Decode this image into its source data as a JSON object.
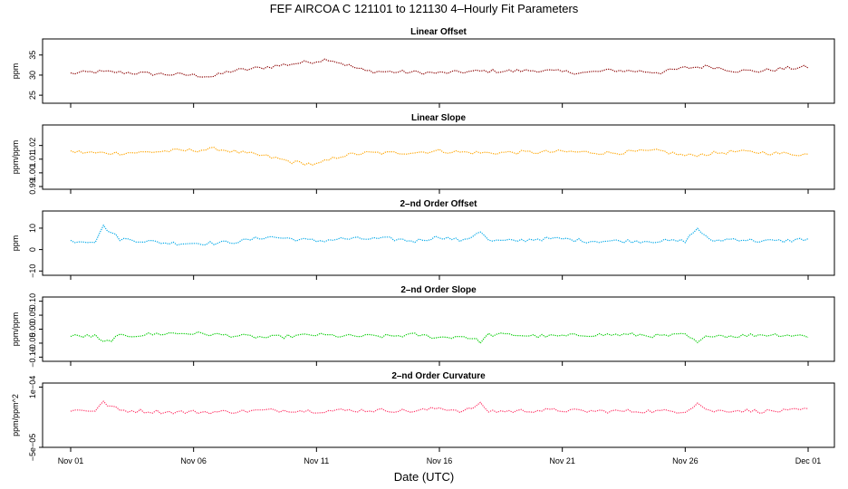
{
  "chart_data": {
    "type": "line",
    "title": "FEF   AIRCOA C   121101 to 121130   4–Hourly Fit Parameters",
    "xlabel": "Date (UTC)",
    "x_ticks": [
      "Nov 01",
      "Nov 06",
      "Nov 11",
      "Nov 16",
      "Nov 21",
      "Nov 26",
      "Dec 01"
    ],
    "x_range_days": [
      0,
      30
    ],
    "panels": [
      {
        "title": "Linear Offset",
        "ylabel": "ppm",
        "color": "#8b0000",
        "ylim": [
          23,
          39
        ],
        "yticks": [
          "25",
          "30",
          "35"
        ],
        "ytick_values": [
          25,
          30,
          35
        ],
        "series": {
          "x": [
            0,
            1,
            2,
            3,
            4,
            5,
            5.8,
            6.5,
            7,
            8,
            9,
            10,
            10.5,
            11,
            12,
            13,
            14,
            15,
            16,
            17,
            18,
            19,
            20,
            21,
            22,
            23,
            24,
            25,
            26,
            27,
            28,
            29,
            30
          ],
          "y": [
            30.4,
            30.8,
            30.7,
            30.4,
            30.2,
            30.0,
            29.6,
            31,
            31.3,
            32,
            32.8,
            33.5,
            34,
            33,
            31,
            30.8,
            30.7,
            30.5,
            30.8,
            31,
            31,
            31.2,
            30.8,
            30.6,
            31.2,
            31,
            30.7,
            31.8,
            32.2,
            31.1,
            31,
            31.6,
            32
          ]
        }
      },
      {
        "title": "Linear Slope",
        "ylabel": "ppm/ppm",
        "color": "#ffa500",
        "ylim": [
          0.988,
          1.035
        ],
        "yticks": [
          "0.99",
          "1.00",
          "1.01",
          "1.02"
        ],
        "ytick_values": [
          0.99,
          1.0,
          1.01,
          1.02
        ],
        "series": {
          "x": [
            0,
            1,
            2,
            3,
            4,
            5,
            6,
            7,
            8,
            9,
            10,
            11,
            12,
            13,
            14,
            15,
            16,
            17,
            18,
            19,
            20,
            21,
            22,
            23,
            24,
            25,
            26,
            27,
            28,
            29,
            30
          ],
          "y": [
            1.0155,
            1.0145,
            1.0145,
            1.015,
            1.016,
            1.0165,
            1.0175,
            1.0145,
            1.012,
            1.008,
            1.006,
            1.0125,
            1.0145,
            1.0145,
            1.015,
            1.016,
            1.015,
            1.0145,
            1.015,
            1.015,
            1.0155,
            1.015,
            1.0145,
            1.0155,
            1.016,
            1.0125,
            1.014,
            1.0155,
            1.015,
            1.014,
            1.0135
          ]
        }
      },
      {
        "title": "2–nd Order Offset",
        "ylabel": "ppm",
        "color": "#00a8e8",
        "ylim": [
          -12,
          18
        ],
        "yticks": [
          "−10",
          "0",
          "10"
        ],
        "ytick_values": [
          -10,
          0,
          10
        ],
        "series": {
          "x": [
            0,
            1,
            1.3,
            2,
            3,
            4,
            5,
            6,
            7,
            8,
            9,
            10,
            11,
            12,
            13,
            14,
            15,
            16,
            16.7,
            17,
            18,
            19,
            20,
            21,
            22,
            23,
            24,
            25,
            25.5,
            26,
            27,
            28,
            29,
            30
          ],
          "y": [
            4,
            4,
            11,
            5,
            4,
            3,
            3,
            3,
            4,
            6,
            5,
            4,
            5,
            5,
            5,
            4,
            6,
            4,
            9,
            4,
            4,
            5,
            5,
            4,
            4,
            4,
            4,
            4,
            10,
            4,
            5,
            4,
            4,
            5
          ]
        }
      },
      {
        "title": "2–nd Order Slope",
        "ylabel": "ppm/ppm",
        "color": "#00cc00",
        "ylim": [
          -0.115,
          0.115
        ],
        "yticks": [
          "−0.10",
          "−0.05",
          "0.00",
          "0.05",
          "0.10"
        ],
        "ytick_values": [
          -0.1,
          -0.05,
          0,
          0.05,
          0.1
        ],
        "series": {
          "x": [
            0,
            1,
            1.3,
            2,
            3,
            4,
            5,
            6,
            7,
            8,
            9,
            10,
            11,
            12,
            13,
            14,
            15,
            16,
            16.7,
            17,
            18,
            19,
            20,
            21,
            22,
            23,
            24,
            25,
            25.5,
            26,
            27,
            28,
            29,
            30
          ],
          "y": [
            -0.025,
            -0.025,
            -0.05,
            -0.025,
            -0.02,
            -0.015,
            -0.015,
            -0.02,
            -0.025,
            -0.03,
            -0.025,
            -0.02,
            -0.025,
            -0.025,
            -0.025,
            -0.02,
            -0.03,
            -0.025,
            -0.045,
            -0.02,
            -0.02,
            -0.025,
            -0.025,
            -0.02,
            -0.02,
            -0.02,
            -0.025,
            -0.02,
            -0.05,
            -0.02,
            -0.025,
            -0.02,
            -0.02,
            -0.025
          ]
        }
      },
      {
        "title": "2–nd Order Curvature",
        "ylabel": "ppm/ppm^2",
        "color": "#ff3366",
        "ylim": [
          -5e-05,
          0.00011
        ],
        "yticks": [
          "−5e−05",
          "1e−04"
        ],
        "ytick_values": [
          -5e-05,
          0.0001
        ],
        "series": {
          "x": [
            0,
            1,
            1.3,
            2,
            3,
            4,
            5,
            6,
            7,
            8,
            9,
            10,
            11,
            12,
            13,
            14,
            15,
            16,
            16.7,
            17,
            18,
            19,
            20,
            21,
            22,
            23,
            24,
            25,
            25.5,
            26,
            27,
            28,
            29,
            30
          ],
          "y": [
            4.2e-05,
            4.2e-05,
            6.2e-05,
            4.2e-05,
            4e-05,
            3.8e-05,
            3.8e-05,
            3.8e-05,
            4e-05,
            4.2e-05,
            4.2e-05,
            4e-05,
            4.2e-05,
            4.2e-05,
            4.2e-05,
            4e-05,
            4.8e-05,
            4e-05,
            5.8e-05,
            4e-05,
            4e-05,
            4.2e-05,
            4.2e-05,
            4e-05,
            4e-05,
            4e-05,
            4e-05,
            4e-05,
            6e-05,
            4e-05,
            4.2e-05,
            4e-05,
            4e-05,
            4.4e-05
          ]
        }
      }
    ]
  }
}
